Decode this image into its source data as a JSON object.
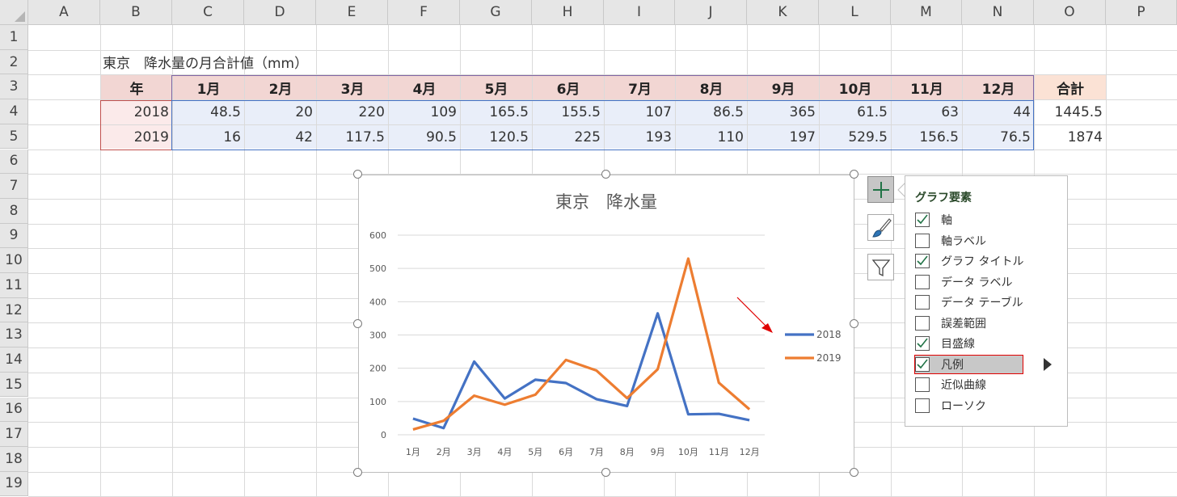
{
  "columns": [
    "A",
    "B",
    "C",
    "D",
    "E",
    "F",
    "G",
    "H",
    "I",
    "J",
    "K",
    "L",
    "M",
    "N",
    "O",
    "P"
  ],
  "rows": [
    "1",
    "2",
    "3",
    "4",
    "5",
    "6",
    "7",
    "8",
    "9",
    "10",
    "11",
    "12",
    "13",
    "14",
    "15",
    "16",
    "17",
    "18",
    "19"
  ],
  "sheet": {
    "title": "東京　降水量の月合計値（mm）",
    "header": [
      "年",
      "1月",
      "2月",
      "3月",
      "4月",
      "5月",
      "6月",
      "7月",
      "8月",
      "9月",
      "10月",
      "11月",
      "12月"
    ],
    "total_header": "合計",
    "data": [
      {
        "year": "2018",
        "values": [
          "48.5",
          "20",
          "220",
          "109",
          "165.5",
          "155.5",
          "107",
          "86.5",
          "365",
          "61.5",
          "63",
          "44"
        ],
        "total": "1445.5"
      },
      {
        "year": "2019",
        "values": [
          "16",
          "42",
          "117.5",
          "90.5",
          "120.5",
          "225",
          "193",
          "110",
          "197",
          "529.5",
          "156.5",
          "76.5"
        ],
        "total": "1874"
      }
    ]
  },
  "chart_data": {
    "type": "line",
    "title": "東京　降水量",
    "categories": [
      "1月",
      "2月",
      "3月",
      "4月",
      "5月",
      "6月",
      "7月",
      "8月",
      "9月",
      "10月",
      "11月",
      "12月"
    ],
    "series": [
      {
        "name": "2018",
        "color": "#4472c4",
        "values": [
          48.5,
          20,
          220,
          109,
          165.5,
          155.5,
          107,
          86.5,
          365,
          61.5,
          63,
          44
        ]
      },
      {
        "name": "2019",
        "color": "#ed7d31",
        "values": [
          16,
          42,
          117.5,
          90.5,
          120.5,
          225,
          193,
          110,
          197,
          529.5,
          156.5,
          76.5
        ]
      }
    ],
    "ylim": [
      0,
      600
    ],
    "yticks": [
      "0",
      "100",
      "200",
      "300",
      "400",
      "500",
      "600"
    ],
    "grid": true,
    "legend": "right"
  },
  "chart_elements_panel": {
    "title": "グラフ要素",
    "items": [
      {
        "label": "軸",
        "checked": true
      },
      {
        "label": "軸ラベル",
        "checked": false
      },
      {
        "label": "グラフ タイトル",
        "checked": true
      },
      {
        "label": "データ ラベル",
        "checked": false
      },
      {
        "label": "データ テーブル",
        "checked": false
      },
      {
        "label": "誤差範囲",
        "checked": false
      },
      {
        "label": "目盛線",
        "checked": true
      },
      {
        "label": "凡例",
        "checked": true,
        "highlighted": true
      },
      {
        "label": "近似曲線",
        "checked": false
      },
      {
        "label": "ローソク",
        "checked": false
      }
    ]
  },
  "icons": {
    "add_element": "plus-icon",
    "chart_styles": "paintbrush-icon",
    "chart_filter": "funnel-icon",
    "submenu_arrow": "triangle-right-icon",
    "annotation": "red-arrow"
  },
  "colors": {
    "accent_green": "#217346",
    "highlight_red": "#e00000"
  }
}
